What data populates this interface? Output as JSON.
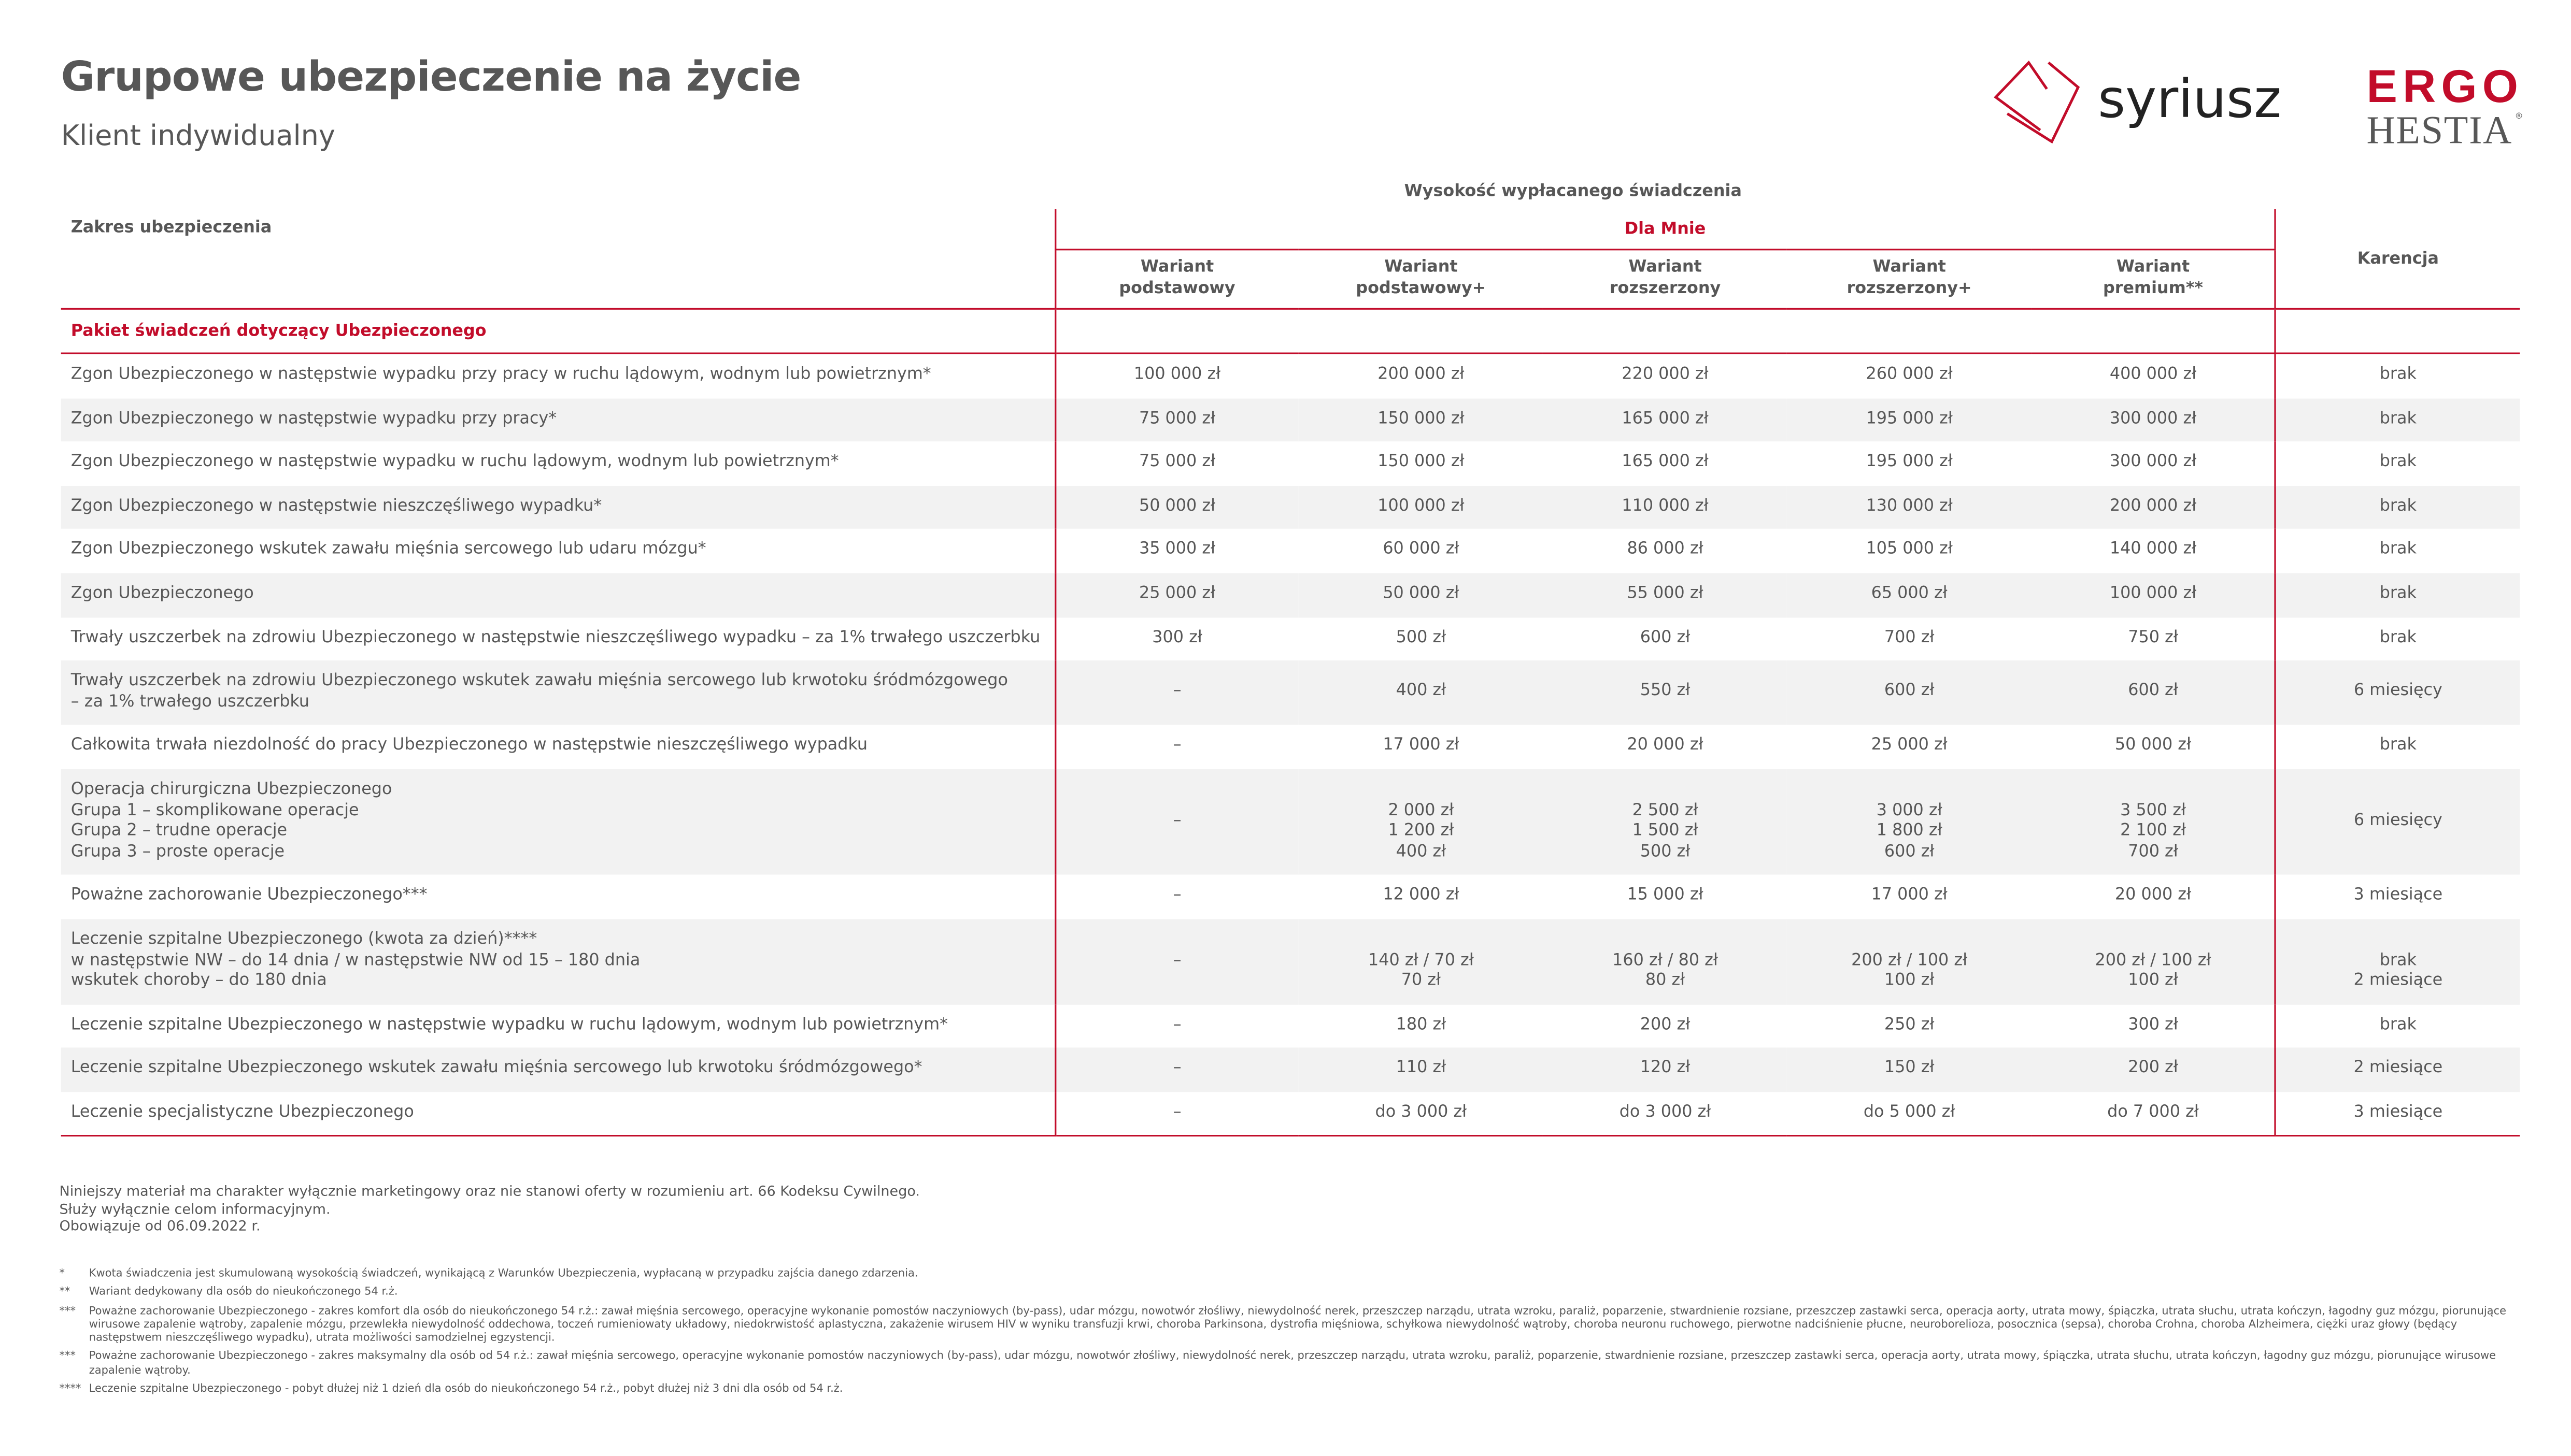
{
  "header": {
    "title": "Grupowe ubezpieczenie na życie",
    "subtitle": "Klient indywidualny",
    "logos": {
      "syriusz": "syriusz",
      "ergo": "ERGO",
      "hestia": "HESTIA"
    }
  },
  "colors": {
    "accent": "#c20c2a",
    "text": "#575757",
    "shade": "#f2f2f2"
  },
  "table": {
    "group_header": "Wysokość wypłacanego świadczenia",
    "scope_header": "Zakres ubezpieczenia",
    "plan_header": "Dla Mnie",
    "karencja_header": "Karencja",
    "variants": [
      "Wariant\npodstawowy",
      "Wariant\npodstawowy+",
      "Wariant\nrozszerzony",
      "Wariant\nrozszerzony+",
      "Wariant\npremium**"
    ],
    "section_label": "Pakiet świadczeń dotyczący Ubezpieczonego",
    "rows": [
      {
        "label": "Zgon Ubezpieczonego w następstwie wypadku przy pracy w ruchu lądowym, wodnym lub powietrznym*",
        "values": [
          "100 000 zł",
          "200 000 zł",
          "220 000 zł",
          "260 000 zł",
          "400 000 zł"
        ],
        "karencja": "brak"
      },
      {
        "label": "Zgon Ubezpieczonego w następstwie wypadku przy pracy*",
        "values": [
          "75 000 zł",
          "150 000 zł",
          "165 000 zł",
          "195 000 zł",
          "300 000 zł"
        ],
        "karencja": "brak"
      },
      {
        "label": "Zgon Ubezpieczonego w następstwie wypadku w ruchu lądowym, wodnym lub powietrznym*",
        "values": [
          "75 000 zł",
          "150 000 zł",
          "165 000 zł",
          "195 000 zł",
          "300 000 zł"
        ],
        "karencja": "brak"
      },
      {
        "label": "Zgon Ubezpieczonego w następstwie nieszczęśliwego wypadku*",
        "values": [
          "50 000 zł",
          "100 000 zł",
          "110 000 zł",
          "130 000 zł",
          "200 000 zł"
        ],
        "karencja": "brak"
      },
      {
        "label": "Zgon Ubezpieczonego wskutek zawału mięśnia sercowego lub udaru mózgu*",
        "values": [
          "35 000 zł",
          "60 000 zł",
          "86 000 zł",
          "105 000 zł",
          "140 000 zł"
        ],
        "karencja": "brak"
      },
      {
        "label": "Zgon Ubezpieczonego",
        "values": [
          "25 000 zł",
          "50 000 zł",
          "55 000 zł",
          "65 000 zł",
          "100 000 zł"
        ],
        "karencja": "brak"
      },
      {
        "label": "Trwały uszczerbek na zdrowiu Ubezpieczonego w następstwie nieszczęśliwego wypadku – za 1% trwałego uszczerbku",
        "values": [
          "300 zł",
          "500 zł",
          "600 zł",
          "700 zł",
          "750 zł"
        ],
        "karencja": "brak"
      },
      {
        "label": "Trwały uszczerbek na zdrowiu Ubezpieczonego wskutek zawału mięśnia sercowego lub krwotoku śródmózgowego\n– za 1% trwałego uszczerbku",
        "values": [
          "–",
          "400 zł",
          "550 zł",
          "600 zł",
          "600 zł"
        ],
        "karencja": "6 miesięcy"
      },
      {
        "label": "Całkowita trwała niezdolność do pracy Ubezpieczonego w następstwie nieszczęśliwego wypadku",
        "values": [
          "–",
          "17 000 zł",
          "20 000 zł",
          "25 000 zł",
          "50 000 zł"
        ],
        "karencja": "brak"
      },
      {
        "label": "Operacja chirurgiczna Ubezpieczonego\nGrupa 1 – skomplikowane operacje\nGrupa 2 – trudne operacje\nGrupa 3 – proste operacje",
        "values": [
          "–",
          "\n2 000 zł\n1 200 zł\n400 zł",
          "\n2 500 zł\n1 500 zł\n500 zł",
          "\n3 000 zł\n1 800 zł\n600 zł",
          "\n3 500 zł\n2 100 zł\n700 zł"
        ],
        "karencja": "6 miesięcy"
      },
      {
        "label": "Poważne zachorowanie Ubezpieczonego***",
        "values": [
          "–",
          "12 000 zł",
          "15 000 zł",
          "17 000 zł",
          "20 000 zł"
        ],
        "karencja": "3 miesiące"
      },
      {
        "label": "Leczenie szpitalne Ubezpieczonego (kwota za dzień)****\nw następstwie NW – do 14 dnia / w następstwie NW od 15 – 180 dnia\nwskutek choroby – do 180 dnia",
        "values": [
          "–",
          "\n140 zł / 70 zł\n70 zł",
          "\n160 zł / 80 zł\n80 zł",
          "\n200 zł / 100 zł\n100 zł",
          "\n200 zł / 100 zł\n100 zł"
        ],
        "karencja": "\nbrak\n2 miesiące"
      },
      {
        "label": "Leczenie szpitalne Ubezpieczonego w następstwie wypadku w ruchu lądowym, wodnym lub powietrznym*",
        "values": [
          "–",
          "180 zł",
          "200 zł",
          "250 zł",
          "300 zł"
        ],
        "karencja": "brak"
      },
      {
        "label": "Leczenie szpitalne Ubezpieczonego wskutek zawału mięśnia sercowego lub krwotoku śródmózgowego*",
        "values": [
          "–",
          "110 zł",
          "120 zł",
          "150 zł",
          "200 zł"
        ],
        "karencja": "2 miesiące"
      },
      {
        "label": "Leczenie specjalistyczne Ubezpieczonego",
        "values": [
          "–",
          "do 3 000 zł",
          "do 3 000 zł",
          "do 5 000 zł",
          "do 7 000 zł"
        ],
        "karencja": "3 miesiące"
      }
    ]
  },
  "disclaimer": "Niniejszy materiał ma charakter wyłącznie marketingowy oraz nie stanowi oferty w rozumieniu art. 66 Kodeksu Cywilnego.\nSłuży wyłącznie celom informacyjnym.\nObowiązuje od 06.09.2022 r.",
  "footnotes": [
    {
      "mark": "*",
      "text": "Kwota świadczenia jest skumulowaną wysokością świadczeń, wynikającą z Warunków Ubezpieczenia, wypłacaną w przypadku zajścia danego zdarzenia."
    },
    {
      "mark": "**",
      "text": "Wariant dedykowany dla osób do nieukończonego 54 r.ż."
    },
    {
      "mark": "***",
      "text": "Poważne zachorowanie Ubezpieczonego - zakres komfort dla osób do nieukończonego 54 r.ż.: zawał mięśnia sercowego, operacyjne wykonanie pomostów naczyniowych (by-pass), udar mózgu, nowotwór złośliwy, niewydolność nerek, przeszczep narządu, utrata wzroku, paraliż, poparzenie, stwardnienie rozsiane, przeszczep zastawki serca, operacja aorty, utrata mowy, śpiączka, utrata słuchu, utrata kończyn, łagodny guz mózgu, piorunujące wirusowe zapalenie wątroby, zapalenie mózgu, przewlekła niewydolność oddechowa, toczeń rumieniowaty układowy, niedokrwistość aplastyczna, zakażenie wirusem HIV w wyniku transfuzji krwi, choroba Parkinsona, dystrofia mięśniowa, schyłkowa niewydolność wątroby, choroba neuronu ruchowego, pierwotne nadciśnienie płucne, neuroborelioza, posocznica (sepsa), choroba Crohna, choroba Alzheimera, ciężki uraz głowy (będący następstwem nieszczęśliwego wypadku), utrata możliwości samodzielnej egzystencji."
    },
    {
      "mark": "***",
      "text": "Poważne zachorowanie Ubezpieczonego - zakres maksymalny dla osób od 54 r.ż.: zawał mięśnia sercowego, operacyjne wykonanie pomostów naczyniowych (by-pass), udar mózgu, nowotwór złośliwy, niewydolność nerek, przeszczep narządu, utrata wzroku, paraliż, poparzenie, stwardnienie rozsiane, przeszczep zastawki serca, operacja aorty, utrata mowy, śpiączka, utrata słuchu, utrata kończyn, łagodny guz mózgu, piorunujące wirusowe zapalenie wątroby."
    },
    {
      "mark": "****",
      "text": "Leczenie szpitalne Ubezpieczonego - pobyt dłużej niż 1 dzień dla osób do nieukończonego 54 r.ż., pobyt dłużej niż 3 dni dla osób od 54 r.ż."
    }
  ]
}
